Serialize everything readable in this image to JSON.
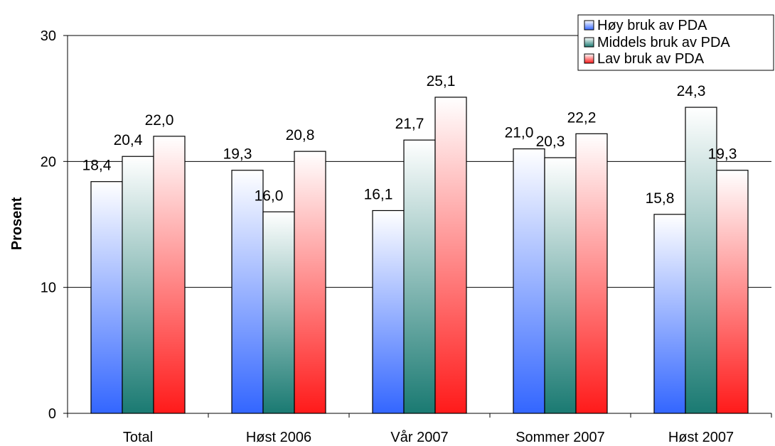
{
  "chart_data": {
    "type": "bar",
    "title": "",
    "xlabel": "",
    "ylabel": "Prosent",
    "ylim": [
      0,
      30
    ],
    "yticks": [
      0,
      10,
      20,
      30
    ],
    "grid": true,
    "legend_position": "top-right",
    "categories": [
      "Total",
      "Høst 2006",
      "Vår 2007",
      "Sommer 2007",
      "Høst 2007"
    ],
    "series": [
      {
        "name": "Høy bruk av PDA",
        "values": [
          18.4,
          19.3,
          16.1,
          21.0,
          15.8
        ],
        "labels": [
          "18,4",
          "19,3",
          "16,1",
          "21,0",
          "15,8"
        ],
        "color_top": "#ffffff",
        "color_bottom": "#3366ff"
      },
      {
        "name": "Middels bruk av PDA",
        "values": [
          20.4,
          16.0,
          21.7,
          20.3,
          24.3
        ],
        "labels": [
          "20,4",
          "16,0",
          "21,7",
          "20,3",
          "24,3"
        ],
        "color_top": "#ffffff",
        "color_bottom": "#1a7a72"
      },
      {
        "name": "Lav bruk av PDA",
        "values": [
          22.0,
          20.8,
          25.1,
          22.2,
          19.3
        ],
        "labels": [
          "22,0",
          "20,8",
          "25,1",
          "22,2",
          "19,3"
        ],
        "color_top": "#ffffff",
        "color_bottom": "#ff1a1a"
      }
    ]
  }
}
